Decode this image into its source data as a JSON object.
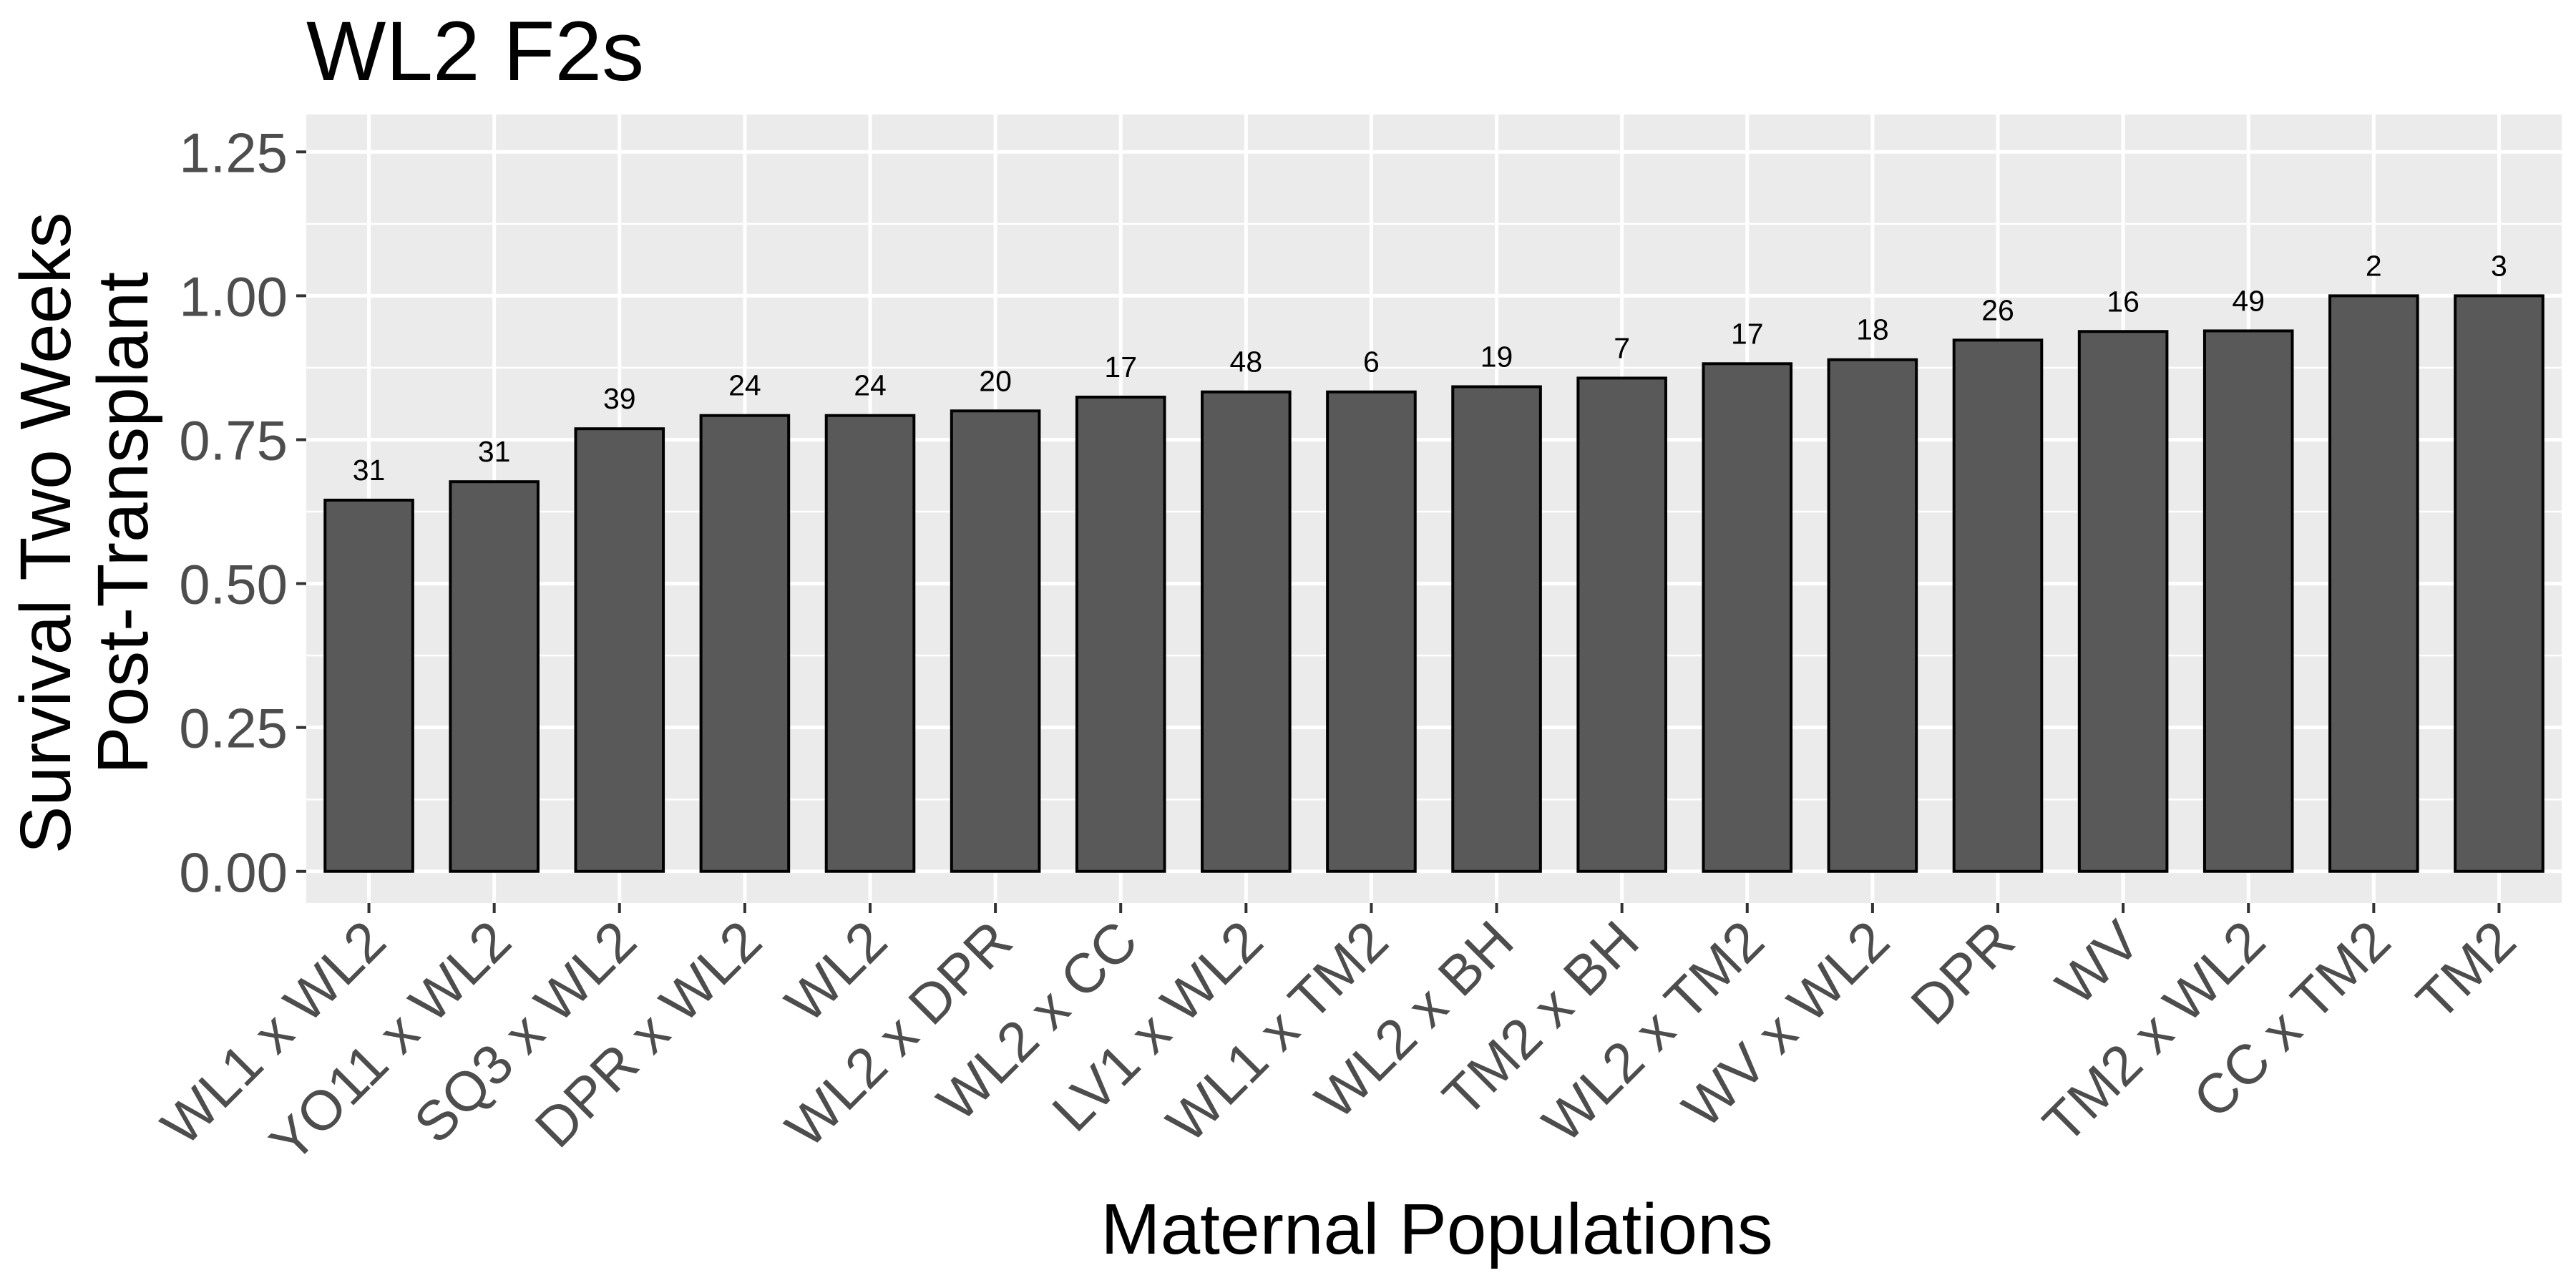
{
  "chart_data": {
    "type": "bar",
    "title": "WL2 F2s",
    "xlabel": "Maternal Populations",
    "ylabel": [
      "Survival Two Weeks",
      "Post-Transplant"
    ],
    "categories": [
      "WL1 x WL2",
      "YO11 x WL2",
      "SQ3 x WL2",
      "DPR x WL2",
      "WL2",
      "WL2 x DPR",
      "WL2 x CC",
      "LV1 x WL2",
      "WL1 x TM2",
      "WL2 x BH",
      "TM2 x BH",
      "WL2 x TM2",
      "WV x WL2",
      "DPR",
      "WV",
      "TM2 x WL2",
      "CC x TM2",
      "TM2"
    ],
    "values": [
      0.645,
      0.677,
      0.769,
      0.792,
      0.792,
      0.8,
      0.824,
      0.833,
      0.833,
      0.842,
      0.857,
      0.882,
      0.889,
      0.923,
      0.938,
      0.939,
      1.0,
      1.0
    ],
    "bar_labels": [
      "31",
      "31",
      "39",
      "24",
      "24",
      "20",
      "17",
      "48",
      "6",
      "19",
      "7",
      "17",
      "18",
      "26",
      "16",
      "49",
      "2",
      "3"
    ],
    "yticks": [
      "0.00",
      "0.25",
      "0.50",
      "0.75",
      "1.00",
      "1.25"
    ],
    "ylim": [
      -0.055,
      1.315
    ],
    "grid": true,
    "colors": {
      "panel": "#ebebeb",
      "grid": "#ffffff",
      "bar_fill": "#595959",
      "bar_stroke": "#000000",
      "tick_text": "#4d4d4d"
    }
  }
}
